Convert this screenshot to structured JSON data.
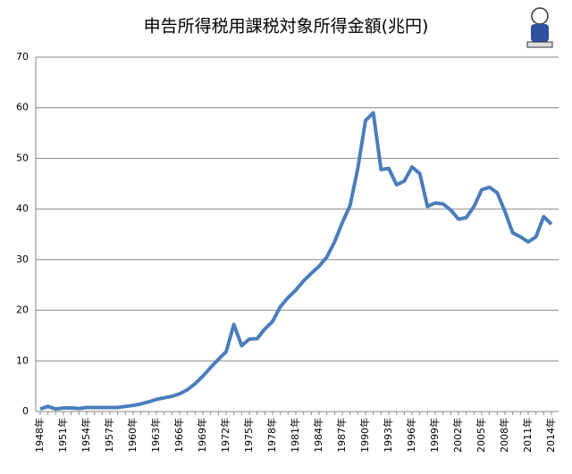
{
  "chart_data": {
    "type": "line",
    "title": "申告所得税用課税対象所得金額(兆円)",
    "categories": [
      "1948年",
      null,
      null,
      "1951年",
      null,
      null,
      "1954年",
      null,
      null,
      "1957年",
      null,
      null,
      "1960年",
      null,
      null,
      "1963年",
      null,
      null,
      "1966年",
      null,
      null,
      "1969年",
      null,
      null,
      "1972年",
      null,
      null,
      "1975年",
      null,
      null,
      "1978年",
      null,
      null,
      "1981年",
      null,
      null,
      "1984年",
      null,
      null,
      "1987年",
      null,
      null,
      "1990年",
      null,
      null,
      "1993年",
      null,
      null,
      "1996年",
      null,
      null,
      "1999年",
      null,
      null,
      "2002年",
      null,
      null,
      "2005年",
      null,
      null,
      "2008年",
      null,
      null,
      "2011年",
      null,
      null,
      "2014年"
    ],
    "values": [
      0.5,
      1.0,
      0.5,
      0.7,
      0.7,
      0.6,
      0.8,
      0.8,
      0.8,
      0.8,
      0.8,
      1.0,
      1.2,
      1.5,
      1.9,
      2.4,
      2.7,
      3.0,
      3.5,
      4.3,
      5.5,
      7.0,
      8.7,
      10.3,
      11.8,
      17.2,
      13.0,
      14.3,
      14.4,
      16.3,
      17.8,
      20.7,
      22.5,
      24.0,
      25.8,
      27.3,
      28.7,
      30.5,
      33.5,
      37.3,
      40.7,
      48.0,
      57.5,
      59.0,
      47.8,
      48.0,
      44.8,
      45.5,
      48.3,
      47.0,
      40.5,
      41.2,
      41.0,
      39.8,
      38.0,
      38.3,
      40.5,
      43.8,
      44.3,
      43.2,
      39.5,
      35.3,
      34.5,
      33.5,
      34.5,
      38.5,
      37.0
    ],
    "color": "#4a7ebb",
    "ylim": [
      0,
      70
    ],
    "yticks": [
      0,
      10,
      20,
      30,
      40,
      50,
      60,
      70
    ],
    "grid": true
  }
}
